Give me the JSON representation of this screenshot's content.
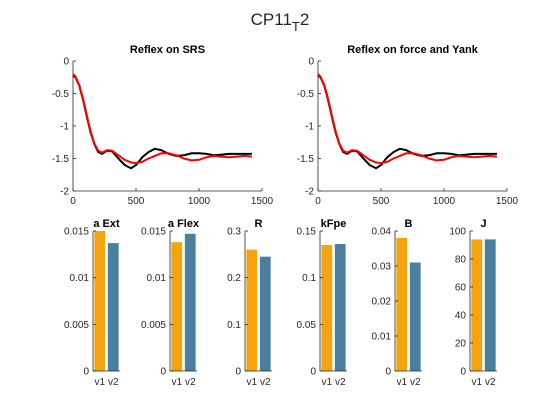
{
  "figure": {
    "title_main": "CP11",
    "title_sub": "T",
    "title_tail": "2"
  },
  "colors": {
    "black_line": "#000000",
    "red_line": "#ff0000",
    "bar_v1": "#f5a30f",
    "bar_v2": "#4a7fa0"
  },
  "chart_data": [
    {
      "type": "line",
      "title": "Reflex on SRS",
      "xlim": [
        0,
        1500
      ],
      "ylim": [
        -2,
        0
      ],
      "xticks": [
        "0",
        "500",
        "1000",
        "1500"
      ],
      "yticks": [
        "-2",
        "-1.5",
        "-1",
        "-0.5",
        "0"
      ],
      "series": [
        {
          "color": "black",
          "x": [
            0,
            20,
            50,
            80,
            110,
            140,
            170,
            200,
            230,
            270,
            310,
            360,
            410,
            460,
            500,
            550,
            600,
            650,
            700,
            760,
            820,
            880,
            940,
            1000,
            1060,
            1120,
            1180,
            1240,
            1300,
            1360,
            1420
          ],
          "y": [
            -0.22,
            -0.25,
            -0.38,
            -0.6,
            -0.86,
            -1.1,
            -1.28,
            -1.4,
            -1.43,
            -1.38,
            -1.39,
            -1.5,
            -1.6,
            -1.65,
            -1.6,
            -1.48,
            -1.4,
            -1.35,
            -1.37,
            -1.43,
            -1.46,
            -1.45,
            -1.42,
            -1.42,
            -1.43,
            -1.45,
            -1.44,
            -1.43,
            -1.43,
            -1.43,
            -1.43
          ]
        },
        {
          "color": "red",
          "x": [
            0,
            20,
            50,
            80,
            110,
            140,
            170,
            200,
            230,
            270,
            310,
            360,
            410,
            460,
            500,
            550,
            600,
            650,
            700,
            760,
            820,
            880,
            940,
            1000,
            1060,
            1120,
            1180,
            1240,
            1300,
            1360,
            1420
          ],
          "y": [
            -0.2,
            -0.24,
            -0.37,
            -0.58,
            -0.84,
            -1.08,
            -1.27,
            -1.38,
            -1.41,
            -1.37,
            -1.38,
            -1.45,
            -1.52,
            -1.56,
            -1.57,
            -1.55,
            -1.5,
            -1.46,
            -1.42,
            -1.42,
            -1.45,
            -1.5,
            -1.53,
            -1.52,
            -1.48,
            -1.46,
            -1.47,
            -1.48,
            -1.47,
            -1.46,
            -1.47
          ]
        }
      ]
    },
    {
      "type": "line",
      "title": "Reflex on force and Yank",
      "xlim": [
        0,
        1500
      ],
      "ylim": [
        -2,
        0
      ],
      "xticks": [
        "0",
        "500",
        "1000",
        "1500"
      ],
      "yticks": [
        "-2",
        "-1.5",
        "-1",
        "-0.5",
        "0"
      ],
      "series": [
        {
          "color": "black",
          "x": [
            0,
            20,
            50,
            80,
            110,
            140,
            170,
            200,
            230,
            270,
            310,
            360,
            410,
            460,
            500,
            550,
            600,
            650,
            700,
            760,
            820,
            880,
            940,
            1000,
            1060,
            1120,
            1180,
            1240,
            1300,
            1360,
            1420
          ],
          "y": [
            -0.22,
            -0.25,
            -0.38,
            -0.6,
            -0.86,
            -1.1,
            -1.28,
            -1.4,
            -1.43,
            -1.38,
            -1.39,
            -1.5,
            -1.6,
            -1.65,
            -1.6,
            -1.48,
            -1.4,
            -1.35,
            -1.37,
            -1.43,
            -1.46,
            -1.45,
            -1.42,
            -1.42,
            -1.43,
            -1.45,
            -1.44,
            -1.43,
            -1.43,
            -1.43,
            -1.43
          ]
        },
        {
          "color": "red",
          "x": [
            0,
            20,
            50,
            80,
            110,
            140,
            170,
            200,
            230,
            270,
            310,
            360,
            410,
            460,
            500,
            550,
            600,
            650,
            700,
            760,
            820,
            880,
            940,
            1000,
            1060,
            1120,
            1180,
            1240,
            1300,
            1360,
            1420
          ],
          "y": [
            -0.2,
            -0.24,
            -0.37,
            -0.58,
            -0.84,
            -1.08,
            -1.27,
            -1.38,
            -1.41,
            -1.37,
            -1.38,
            -1.45,
            -1.52,
            -1.56,
            -1.57,
            -1.55,
            -1.5,
            -1.46,
            -1.42,
            -1.42,
            -1.45,
            -1.5,
            -1.53,
            -1.52,
            -1.48,
            -1.46,
            -1.47,
            -1.48,
            -1.47,
            -1.46,
            -1.47
          ]
        }
      ]
    },
    {
      "type": "bar",
      "title": "a Ext",
      "categories": [
        "v1",
        "v2"
      ],
      "values": [
        0.015,
        0.0137
      ],
      "ylim": [
        0,
        0.015
      ],
      "yticks": [
        0,
        0.005,
        0.01,
        0.015
      ],
      "yticklabels": [
        "0",
        "0.005",
        "0.01",
        "0.015"
      ]
    },
    {
      "type": "bar",
      "title": "a Flex",
      "categories": [
        "v1",
        "v2"
      ],
      "values": [
        0.0138,
        0.0147
      ],
      "ylim": [
        0,
        0.015
      ],
      "yticks": [
        0,
        0.005,
        0.01,
        0.015
      ],
      "yticklabels": [
        "0",
        "0.005",
        "0.01",
        "0.015"
      ]
    },
    {
      "type": "bar",
      "title": "R",
      "categories": [
        "v1",
        "v2"
      ],
      "values": [
        0.26,
        0.245
      ],
      "ylim": [
        0,
        0.3
      ],
      "yticks": [
        0,
        0.1,
        0.2,
        0.3
      ],
      "yticklabels": [
        "0",
        "0.1",
        "0.2",
        "0.3"
      ]
    },
    {
      "type": "bar",
      "title": "kFpe",
      "categories": [
        "v1",
        "v2"
      ],
      "values": [
        0.135,
        0.136
      ],
      "ylim": [
        0,
        0.15
      ],
      "yticks": [
        0,
        0.05,
        0.1,
        0.15
      ],
      "yticklabels": [
        "0",
        "0.05",
        "0.1",
        "0.15"
      ]
    },
    {
      "type": "bar",
      "title": "B",
      "categories": [
        "v1",
        "v2"
      ],
      "values": [
        0.038,
        0.031
      ],
      "ylim": [
        0,
        0.04
      ],
      "yticks": [
        0,
        0.01,
        0.02,
        0.03,
        0.04
      ],
      "yticklabels": [
        "0",
        "0.01",
        "0.02",
        "0.03",
        "0.04"
      ]
    },
    {
      "type": "bar",
      "title": "J",
      "categories": [
        "v1",
        "v2"
      ],
      "values": [
        94,
        94
      ],
      "ylim": [
        0,
        100
      ],
      "yticks": [
        0,
        20,
        40,
        60,
        80,
        100
      ],
      "yticklabels": [
        "0",
        "20",
        "40",
        "60",
        "80",
        "100"
      ]
    }
  ]
}
